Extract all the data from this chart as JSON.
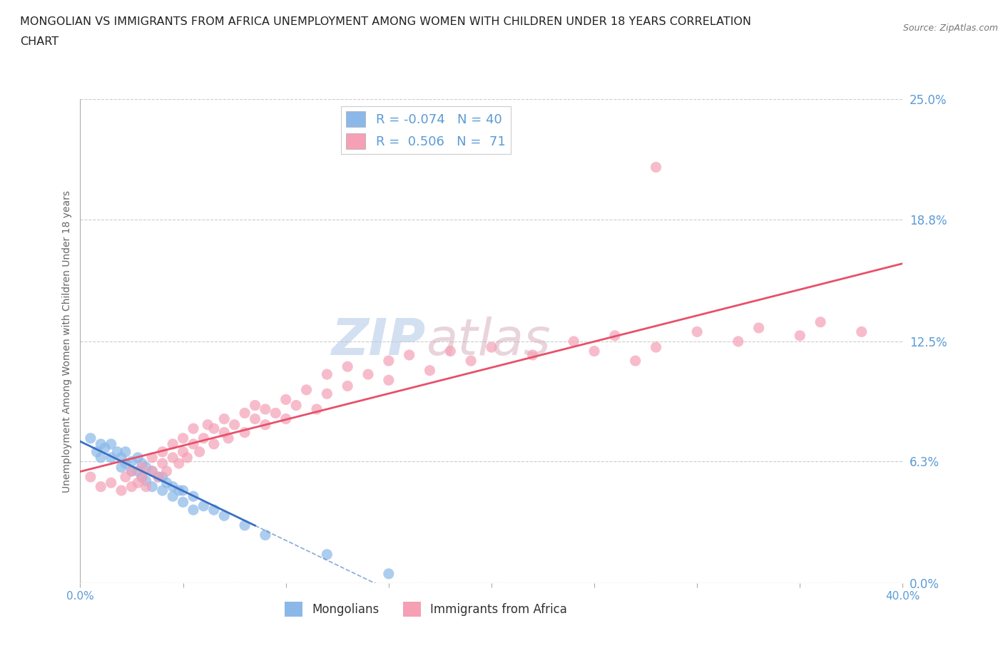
{
  "title_line1": "MONGOLIAN VS IMMIGRANTS FROM AFRICA UNEMPLOYMENT AMONG WOMEN WITH CHILDREN UNDER 18 YEARS CORRELATION",
  "title_line2": "CHART",
  "source": "Source: ZipAtlas.com",
  "ylabel": "Unemployment Among Women with Children Under 18 years",
  "xlim": [
    0.0,
    0.4
  ],
  "ylim": [
    0.0,
    0.25
  ],
  "xticks": [
    0.0,
    0.05,
    0.1,
    0.15,
    0.2,
    0.25,
    0.3,
    0.35,
    0.4
  ],
  "xticklabels": [
    "0.0%",
    "",
    "",
    "",
    "",
    "",
    "",
    "",
    "40.0%"
  ],
  "ytick_labels_right": [
    "0.0%",
    "6.3%",
    "12.5%",
    "18.8%",
    "25.0%"
  ],
  "ytick_values_right": [
    0.0,
    0.063,
    0.125,
    0.188,
    0.25
  ],
  "grid_color": "#cccccc",
  "background_color": "#ffffff",
  "watermark_zip": "ZIP",
  "watermark_atlas": "atlas",
  "mongolian_color": "#8bb8e8",
  "africa_color": "#f5a0b5",
  "mongolian_line_color": "#3a6fc4",
  "africa_line_color": "#e8506a",
  "mongolian_R": -0.074,
  "mongolian_N": 40,
  "africa_R": 0.506,
  "africa_N": 71,
  "legend_label_mongolian": "Mongolians",
  "legend_label_africa": "Immigrants from Africa",
  "right_axis_color": "#5b9bd5",
  "mon_x": [
    0.005,
    0.008,
    0.01,
    0.01,
    0.012,
    0.015,
    0.015,
    0.018,
    0.02,
    0.02,
    0.022,
    0.022,
    0.025,
    0.025,
    0.028,
    0.028,
    0.03,
    0.03,
    0.032,
    0.032,
    0.035,
    0.035,
    0.038,
    0.04,
    0.04,
    0.042,
    0.045,
    0.045,
    0.048,
    0.05,
    0.05,
    0.055,
    0.055,
    0.06,
    0.065,
    0.07,
    0.08,
    0.09,
    0.12,
    0.15
  ],
  "mon_y": [
    0.075,
    0.068,
    0.072,
    0.065,
    0.07,
    0.072,
    0.065,
    0.068,
    0.065,
    0.06,
    0.068,
    0.062,
    0.063,
    0.058,
    0.065,
    0.058,
    0.062,
    0.055,
    0.06,
    0.053,
    0.058,
    0.05,
    0.055,
    0.055,
    0.048,
    0.052,
    0.05,
    0.045,
    0.048,
    0.048,
    0.042,
    0.045,
    0.038,
    0.04,
    0.038,
    0.035,
    0.03,
    0.025,
    0.015,
    0.005
  ],
  "afr_x": [
    0.005,
    0.01,
    0.015,
    0.02,
    0.022,
    0.025,
    0.025,
    0.028,
    0.03,
    0.03,
    0.032,
    0.035,
    0.035,
    0.038,
    0.04,
    0.04,
    0.042,
    0.045,
    0.045,
    0.048,
    0.05,
    0.05,
    0.052,
    0.055,
    0.055,
    0.058,
    0.06,
    0.062,
    0.065,
    0.065,
    0.07,
    0.07,
    0.072,
    0.075,
    0.08,
    0.08,
    0.085,
    0.085,
    0.09,
    0.09,
    0.095,
    0.1,
    0.1,
    0.105,
    0.11,
    0.115,
    0.12,
    0.12,
    0.13,
    0.13,
    0.14,
    0.15,
    0.15,
    0.16,
    0.17,
    0.18,
    0.19,
    0.2,
    0.22,
    0.24,
    0.25,
    0.26,
    0.27,
    0.28,
    0.3,
    0.32,
    0.33,
    0.35,
    0.36,
    0.38,
    0.28
  ],
  "afr_y": [
    0.055,
    0.05,
    0.052,
    0.048,
    0.055,
    0.05,
    0.058,
    0.052,
    0.055,
    0.06,
    0.05,
    0.058,
    0.065,
    0.055,
    0.062,
    0.068,
    0.058,
    0.065,
    0.072,
    0.062,
    0.068,
    0.075,
    0.065,
    0.072,
    0.08,
    0.068,
    0.075,
    0.082,
    0.072,
    0.08,
    0.078,
    0.085,
    0.075,
    0.082,
    0.088,
    0.078,
    0.085,
    0.092,
    0.082,
    0.09,
    0.088,
    0.095,
    0.085,
    0.092,
    0.1,
    0.09,
    0.098,
    0.108,
    0.102,
    0.112,
    0.108,
    0.115,
    0.105,
    0.118,
    0.11,
    0.12,
    0.115,
    0.122,
    0.118,
    0.125,
    0.12,
    0.128,
    0.115,
    0.122,
    0.13,
    0.125,
    0.132,
    0.128,
    0.135,
    0.13,
    0.215
  ]
}
